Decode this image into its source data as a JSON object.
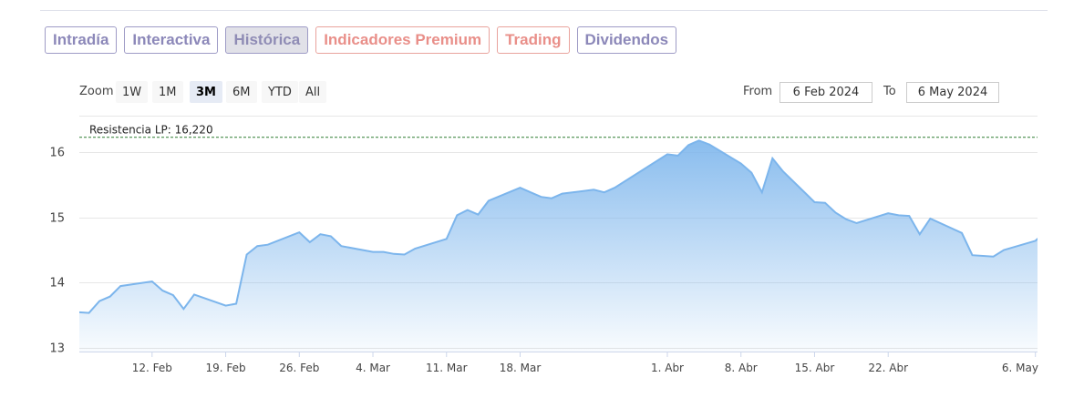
{
  "tabs": [
    {
      "label": "Intradía",
      "style": "purple"
    },
    {
      "label": "Interactiva",
      "style": "purple"
    },
    {
      "label": "Histórica",
      "style": "purple",
      "active": true
    },
    {
      "label": "Indicadores Premium",
      "style": "red"
    },
    {
      "label": "Trading",
      "style": "red"
    },
    {
      "label": "Dividendos",
      "style": "purple"
    }
  ],
  "range_selector": {
    "zoom_label": "Zoom",
    "buttons": [
      "1W",
      "1M",
      "3M",
      "6M",
      "YTD",
      "All"
    ],
    "selected": "3M",
    "from_label": "From",
    "from_value": "6 Feb 2024",
    "to_label": "To",
    "to_value": "6 May 2024"
  },
  "colors": {
    "series_line": "#7cb5ec",
    "area_top": "#7cb5ec",
    "resistance_line": "#2e7d32",
    "purple_tab": "#8c88b9",
    "red_tab": "#e98f89"
  },
  "chart_data": {
    "type": "area",
    "ylim": [
      12.95,
      16.55
    ],
    "yticks": [
      13,
      14,
      15,
      16
    ],
    "x_ticks": [
      {
        "label": "12. Feb",
        "date": "2024-02-12"
      },
      {
        "label": "19. Feb",
        "date": "2024-02-19"
      },
      {
        "label": "26. Feb",
        "date": "2024-02-26"
      },
      {
        "label": "4. Mar",
        "date": "2024-03-04"
      },
      {
        "label": "11. Mar",
        "date": "2024-03-11"
      },
      {
        "label": "18. Mar",
        "date": "2024-03-18"
      },
      {
        "label": "1. Abr",
        "date": "2024-04-01"
      },
      {
        "label": "8. Abr",
        "date": "2024-04-08"
      },
      {
        "label": "15. Abr",
        "date": "2024-04-15"
      },
      {
        "label": "22. Abr",
        "date": "2024-04-22"
      },
      {
        "label": "6. May",
        "date": "2024-05-06"
      }
    ],
    "annotation": {
      "label": "Resistencia LP: 16,220",
      "value": 16.22
    },
    "series": [
      {
        "x": [
          "2024-02-05",
          "2024-02-06",
          "2024-02-07",
          "2024-02-08",
          "2024-02-09",
          "2024-02-12",
          "2024-02-13",
          "2024-02-14",
          "2024-02-15",
          "2024-02-16",
          "2024-02-19",
          "2024-02-20",
          "2024-02-21",
          "2024-02-22",
          "2024-02-23",
          "2024-02-26",
          "2024-02-27",
          "2024-02-28",
          "2024-02-29",
          "2024-03-01",
          "2024-03-04",
          "2024-03-05",
          "2024-03-06",
          "2024-03-07",
          "2024-03-08",
          "2024-03-11",
          "2024-03-12",
          "2024-03-13",
          "2024-03-14",
          "2024-03-15",
          "2024-03-18",
          "2024-03-19",
          "2024-03-20",
          "2024-03-21",
          "2024-03-22",
          "2024-03-25",
          "2024-03-26",
          "2024-03-27",
          "2024-04-01",
          "2024-04-02",
          "2024-04-03",
          "2024-04-04",
          "2024-04-05",
          "2024-04-08",
          "2024-04-09",
          "2024-04-10",
          "2024-04-11",
          "2024-04-12",
          "2024-04-15",
          "2024-04-16",
          "2024-04-17",
          "2024-04-18",
          "2024-04-19",
          "2024-04-22",
          "2024-04-23",
          "2024-04-24",
          "2024-04-25",
          "2024-04-26",
          "2024-04-29",
          "2024-04-30",
          "2024-05-02",
          "2024-05-03",
          "2024-05-06",
          "2024-05-07"
        ],
        "values": [
          13.55,
          13.54,
          13.72,
          13.79,
          13.95,
          14.02,
          13.88,
          13.81,
          13.6,
          13.82,
          13.65,
          13.68,
          14.43,
          14.56,
          14.58,
          14.77,
          14.62,
          14.74,
          14.71,
          14.56,
          14.47,
          14.47,
          14.44,
          14.43,
          14.52,
          14.67,
          15.03,
          15.11,
          15.04,
          15.25,
          15.45,
          15.38,
          15.31,
          15.29,
          15.36,
          15.42,
          15.38,
          15.45,
          15.96,
          15.94,
          16.1,
          16.17,
          16.11,
          15.82,
          15.68,
          15.38,
          15.9,
          15.7,
          15.23,
          15.22,
          15.07,
          14.97,
          14.91,
          15.06,
          15.03,
          15.02,
          14.74,
          14.98,
          14.76,
          14.42,
          14.4,
          14.5,
          14.64,
          14.78
        ]
      }
    ]
  }
}
